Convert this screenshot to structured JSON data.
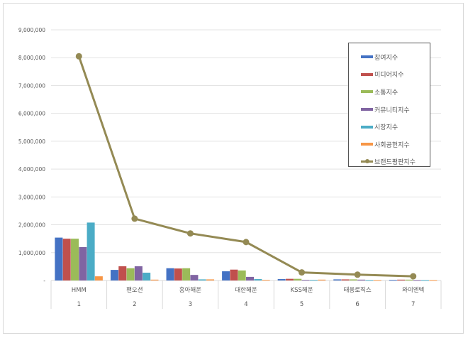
{
  "chart_data": {
    "type": "bar",
    "categories": [
      "HMM",
      "팬오션",
      "흥아해운",
      "대한해운",
      "KSS해운",
      "태웅로직스",
      "와이엔텍"
    ],
    "category_ranks": [
      "1",
      "2",
      "3",
      "4",
      "5",
      "6",
      "7"
    ],
    "ylim": [
      0,
      9000000
    ],
    "yticks": [
      "-",
      "1,000,000",
      "2,000,000",
      "3,000,000",
      "4,000,000",
      "5,000,000",
      "6,000,000",
      "7,000,000",
      "8,000,000",
      "9,000,000"
    ],
    "grid": true,
    "legend_position": "right-top",
    "series": [
      {
        "name": "참여지수",
        "type": "bar",
        "color": "#4472c4",
        "values": [
          1540000,
          380000,
          440000,
          330000,
          50000,
          40000,
          20000
        ]
      },
      {
        "name": "미디어지수",
        "type": "bar",
        "color": "#c0504d",
        "values": [
          1500000,
          510000,
          430000,
          390000,
          60000,
          40000,
          30000
        ]
      },
      {
        "name": "소통지수",
        "type": "bar",
        "color": "#9bbb59",
        "values": [
          1500000,
          440000,
          440000,
          360000,
          60000,
          40000,
          30000
        ]
      },
      {
        "name": "커뮤니티지수",
        "type": "bar",
        "color": "#8064a2",
        "values": [
          1200000,
          510000,
          200000,
          130000,
          20000,
          30000,
          10000
        ]
      },
      {
        "name": "시장지수",
        "type": "bar",
        "color": "#4bacc6",
        "values": [
          2080000,
          280000,
          40000,
          50000,
          20000,
          10000,
          10000
        ]
      },
      {
        "name": "사회공헌지수",
        "type": "bar",
        "color": "#f79646",
        "values": [
          150000,
          30000,
          40000,
          20000,
          30000,
          10000,
          10000
        ]
      },
      {
        "name": "브랜드평판지수",
        "type": "line",
        "color": "#948a54",
        "values": [
          8050000,
          2220000,
          1690000,
          1380000,
          290000,
          210000,
          150000
        ]
      }
    ]
  }
}
